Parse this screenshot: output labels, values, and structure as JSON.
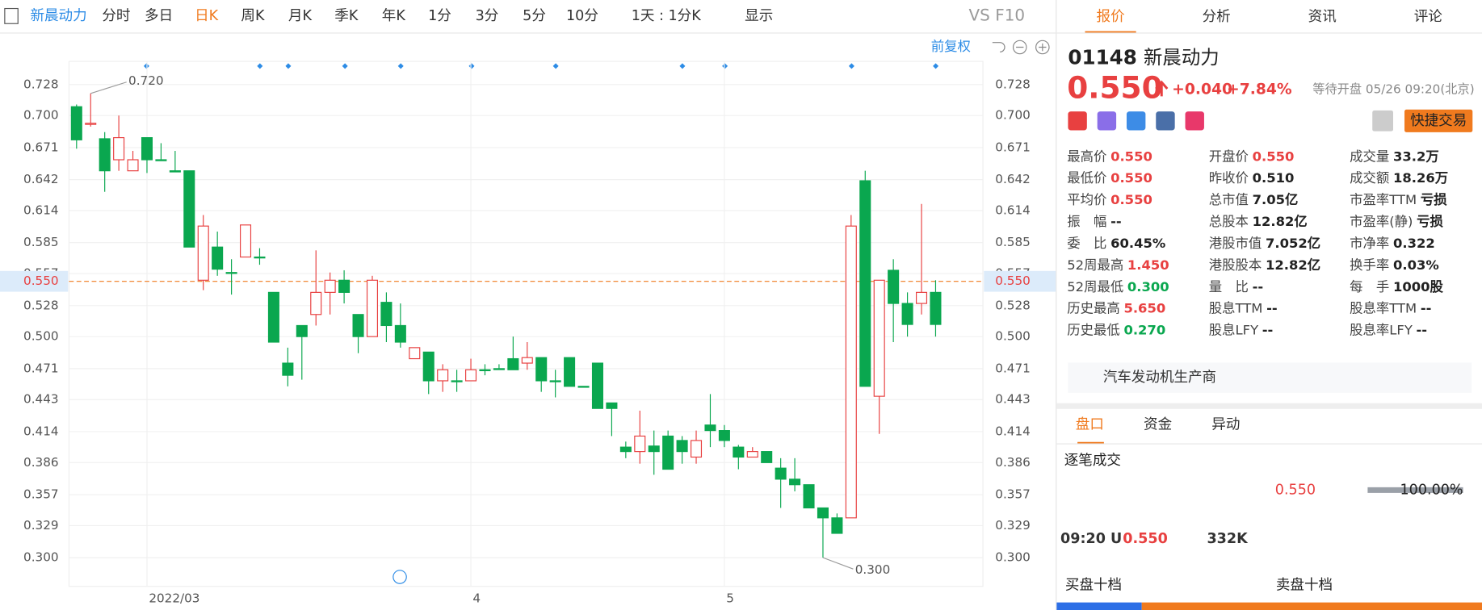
{
  "toolbar": {
    "tabs": [
      "新晨动力",
      "分时",
      "多日",
      "日K",
      "周K",
      "月K",
      "季K",
      "年K",
      "1分",
      "3分",
      "5分",
      "10分"
    ],
    "period": "1天 : 1分K",
    "display": "显示",
    "vs": "VS",
    "f10": "F10"
  },
  "chart": {
    "type": "candlestick",
    "adjust": "前复权",
    "ylim": [
      0.274,
      0.749
    ],
    "yticks": [
      {
        "value": 0.3,
        "label": "0.300"
      },
      {
        "value": 0.329,
        "label": "0.329"
      },
      {
        "value": 0.357,
        "label": "0.357"
      },
      {
        "value": 0.386,
        "label": "0.386"
      },
      {
        "value": 0.414,
        "label": "0.414"
      },
      {
        "value": 0.443,
        "label": "0.443"
      },
      {
        "value": 0.471,
        "label": "0.471"
      },
      {
        "value": 0.5,
        "label": "0.500"
      },
      {
        "value": 0.528,
        "label": "0.528"
      },
      {
        "value": 0.557,
        "label": "0.557"
      },
      {
        "value": 0.585,
        "label": "0.585"
      },
      {
        "value": 0.614,
        "label": "0.614"
      },
      {
        "value": 0.642,
        "label": "0.642"
      },
      {
        "value": 0.671,
        "label": "0.671"
      },
      {
        "value": 0.7,
        "label": "0.700"
      },
      {
        "value": 0.728,
        "label": "0.728"
      }
    ],
    "date_labels": [
      {
        "index": 5,
        "label": "2022/03"
      },
      {
        "index": 28,
        "label": "4"
      },
      {
        "index": 46,
        "label": "5"
      }
    ],
    "current_price": {
      "value": 0.55,
      "label": "0.550"
    },
    "high_note": {
      "value": 0.72,
      "label": "0.720",
      "index": 1
    },
    "low_note": {
      "value": 0.3,
      "label": "0.300",
      "index": 53
    },
    "up_color": "#e84040",
    "down_color": "#0aa74f",
    "candles": [
      {
        "open": 0.708,
        "high": 0.71,
        "low": 0.67,
        "close": 0.678
      },
      {
        "open": 0.692,
        "high": 0.72,
        "low": 0.69,
        "close": 0.693
      },
      {
        "open": 0.679,
        "high": 0.685,
        "low": 0.631,
        "close": 0.65
      },
      {
        "open": 0.66,
        "high": 0.7,
        "low": 0.65,
        "close": 0.68
      },
      {
        "open": 0.65,
        "high": 0.668,
        "low": 0.65,
        "close": 0.66
      },
      {
        "open": 0.68,
        "high": 0.68,
        "low": 0.648,
        "close": 0.66
      },
      {
        "open": 0.66,
        "high": 0.675,
        "low": 0.66,
        "close": 0.66
      },
      {
        "open": 0.65,
        "high": 0.668,
        "low": 0.65,
        "close": 0.649
      },
      {
        "open": 0.65,
        "high": 0.65,
        "low": 0.581,
        "close": 0.581
      },
      {
        "open": 0.551,
        "high": 0.61,
        "low": 0.542,
        "close": 0.6
      },
      {
        "open": 0.581,
        "high": 0.595,
        "low": 0.555,
        "close": 0.561
      },
      {
        "open": 0.558,
        "high": 0.57,
        "low": 0.538,
        "close": 0.558
      },
      {
        "open": 0.572,
        "high": 0.601,
        "low": 0.572,
        "close": 0.601
      },
      {
        "open": 0.572,
        "high": 0.58,
        "low": 0.565,
        "close": 0.572
      },
      {
        "open": 0.54,
        "high": 0.54,
        "low": 0.495,
        "close": 0.495
      },
      {
        "open": 0.476,
        "high": 0.49,
        "low": 0.455,
        "close": 0.465
      },
      {
        "open": 0.51,
        "high": 0.51,
        "low": 0.461,
        "close": 0.5
      },
      {
        "open": 0.52,
        "high": 0.578,
        "low": 0.51,
        "close": 0.54
      },
      {
        "open": 0.54,
        "high": 0.558,
        "low": 0.52,
        "close": 0.551
      },
      {
        "open": 0.551,
        "high": 0.56,
        "low": 0.53,
        "close": 0.54
      },
      {
        "open": 0.52,
        "high": 0.52,
        "low": 0.485,
        "close": 0.5
      },
      {
        "open": 0.5,
        "high": 0.555,
        "low": 0.5,
        "close": 0.551
      },
      {
        "open": 0.531,
        "high": 0.54,
        "low": 0.495,
        "close": 0.51
      },
      {
        "open": 0.51,
        "high": 0.53,
        "low": 0.49,
        "close": 0.495
      },
      {
        "open": 0.48,
        "high": 0.49,
        "low": 0.48,
        "close": 0.49
      },
      {
        "open": 0.486,
        "high": 0.486,
        "low": 0.448,
        "close": 0.46
      },
      {
        "open": 0.46,
        "high": 0.475,
        "low": 0.45,
        "close": 0.47
      },
      {
        "open": 0.46,
        "high": 0.47,
        "low": 0.45,
        "close": 0.46
      },
      {
        "open": 0.46,
        "high": 0.48,
        "low": 0.46,
        "close": 0.47
      },
      {
        "open": 0.47,
        "high": 0.475,
        "low": 0.465,
        "close": 0.47
      },
      {
        "open": 0.471,
        "high": 0.475,
        "low": 0.471,
        "close": 0.471
      },
      {
        "open": 0.48,
        "high": 0.5,
        "low": 0.47,
        "close": 0.47
      },
      {
        "open": 0.476,
        "high": 0.495,
        "low": 0.47,
        "close": 0.481
      },
      {
        "open": 0.481,
        "high": 0.481,
        "low": 0.45,
        "close": 0.46
      },
      {
        "open": 0.46,
        "high": 0.47,
        "low": 0.445,
        "close": 0.46
      },
      {
        "open": 0.481,
        "high": 0.481,
        "low": 0.455,
        "close": 0.455
      },
      {
        "open": 0.455,
        "high": 0.455,
        "low": 0.455,
        "close": 0.455
      },
      {
        "open": 0.476,
        "high": 0.476,
        "low": 0.435,
        "close": 0.435
      },
      {
        "open": 0.44,
        "high": 0.44,
        "low": 0.41,
        "close": 0.435
      },
      {
        "open": 0.4,
        "high": 0.405,
        "low": 0.39,
        "close": 0.396
      },
      {
        "open": 0.396,
        "high": 0.433,
        "low": 0.385,
        "close": 0.41
      },
      {
        "open": 0.401,
        "high": 0.415,
        "low": 0.375,
        "close": 0.396
      },
      {
        "open": 0.41,
        "high": 0.415,
        "low": 0.38,
        "close": 0.38
      },
      {
        "open": 0.406,
        "high": 0.41,
        "low": 0.385,
        "close": 0.396
      },
      {
        "open": 0.391,
        "high": 0.415,
        "low": 0.385,
        "close": 0.406
      },
      {
        "open": 0.42,
        "high": 0.448,
        "low": 0.4,
        "close": 0.415
      },
      {
        "open": 0.415,
        "high": 0.42,
        "low": 0.4,
        "close": 0.406
      },
      {
        "open": 0.4,
        "high": 0.402,
        "low": 0.38,
        "close": 0.391
      },
      {
        "open": 0.391,
        "high": 0.4,
        "low": 0.391,
        "close": 0.396
      },
      {
        "open": 0.396,
        "high": 0.396,
        "low": 0.386,
        "close": 0.386
      },
      {
        "open": 0.381,
        "high": 0.39,
        "low": 0.345,
        "close": 0.371
      },
      {
        "open": 0.371,
        "high": 0.39,
        "low": 0.36,
        "close": 0.366
      },
      {
        "open": 0.366,
        "high": 0.366,
        "low": 0.345,
        "close": 0.345
      },
      {
        "open": 0.345,
        "high": 0.345,
        "low": 0.3,
        "close": 0.336
      },
      {
        "open": 0.336,
        "high": 0.34,
        "low": 0.322,
        "close": 0.322
      },
      {
        "open": 0.336,
        "high": 0.61,
        "low": 0.336,
        "close": 0.6
      },
      {
        "open": 0.641,
        "high": 0.65,
        "low": 0.455,
        "close": 0.455
      },
      {
        "open": 0.446,
        "high": 0.551,
        "low": 0.412,
        "close": 0.551
      },
      {
        "open": 0.56,
        "high": 0.57,
        "low": 0.495,
        "close": 0.53
      },
      {
        "open": 0.53,
        "high": 0.54,
        "low": 0.5,
        "close": 0.511
      },
      {
        "open": 0.53,
        "high": 0.62,
        "low": 0.52,
        "close": 0.54
      },
      {
        "open": 0.54,
        "high": 0.551,
        "low": 0.5,
        "close": 0.511
      }
    ]
  },
  "quote": {
    "tabs": [
      "报价",
      "分析",
      "资讯",
      "评论"
    ],
    "code": "01148",
    "name": "新晨动力",
    "price": "0.550",
    "change": "+0.040",
    "pct": "+7.84%",
    "status": "等待开盘 05/26 09:20(北京)",
    "quick_trade": "快捷交易",
    "stats": [
      [
        {
          "label": "最高价",
          "value": "0.550",
          "color": "#e84040"
        },
        {
          "label": "最低价",
          "value": "0.550",
          "color": "#e84040"
        },
        {
          "label": "平均价",
          "value": "0.550",
          "color": "#e84040"
        },
        {
          "label": "振　幅",
          "value": "--",
          "color": "#222"
        },
        {
          "label": "委　比",
          "value": "60.45%",
          "color": "#222"
        },
        {
          "label": "52周最高",
          "value": "1.450",
          "color": "#e84040"
        },
        {
          "label": "52周最低",
          "value": "0.300",
          "color": "#0aa74f"
        },
        {
          "label": "历史最高",
          "value": "5.650",
          "color": "#e84040"
        },
        {
          "label": "历史最低",
          "value": "0.270",
          "color": "#0aa74f"
        }
      ],
      [
        {
          "label": "开盘价",
          "value": "0.550",
          "color": "#e84040"
        },
        {
          "label": "昨收价",
          "value": "0.510",
          "color": "#222"
        },
        {
          "label": "总市值",
          "value": "7.05亿",
          "color": "#222"
        },
        {
          "label": "总股本",
          "value": "12.82亿",
          "color": "#222"
        },
        {
          "label": "港股市值",
          "value": "7.052亿",
          "color": "#222"
        },
        {
          "label": "港股股本",
          "value": "12.82亿",
          "color": "#222"
        },
        {
          "label": "量　比",
          "value": "--",
          "color": "#222"
        },
        {
          "label": "股息TTM",
          "value": "--",
          "color": "#222"
        },
        {
          "label": "股息LFY",
          "value": "--",
          "color": "#222"
        }
      ],
      [
        {
          "label": "成交量",
          "value": "33.2万",
          "color": "#222"
        },
        {
          "label": "成交额",
          "value": "18.26万",
          "color": "#222"
        },
        {
          "label": "市盈率TTM",
          "value": "亏损",
          "color": "#222"
        },
        {
          "label": "市盈率(静)",
          "value": "亏损",
          "color": "#222"
        },
        {
          "label": "市净率",
          "value": "0.322",
          "color": "#222"
        },
        {
          "label": "换手率",
          "value": "0.03%",
          "color": "#222"
        },
        {
          "label": "每　手",
          "value": "1000股",
          "color": "#222"
        },
        {
          "label": "股息率TTM",
          "value": "--",
          "color": "#222"
        },
        {
          "label": "股息率LFY",
          "value": "--",
          "color": "#222"
        }
      ]
    ],
    "description": "汽车发动机生产商",
    "subtabs": [
      "盘口",
      "资金",
      "异动"
    ],
    "ticks_title": "逐笔成交",
    "tick_summary": {
      "price": "0.550",
      "ratio": "100.00%"
    },
    "trade": {
      "time": "09:20 U",
      "price": "0.550",
      "volume": "332K"
    },
    "bid_title": "买盘十档",
    "ask_title": "卖盘十档"
  }
}
